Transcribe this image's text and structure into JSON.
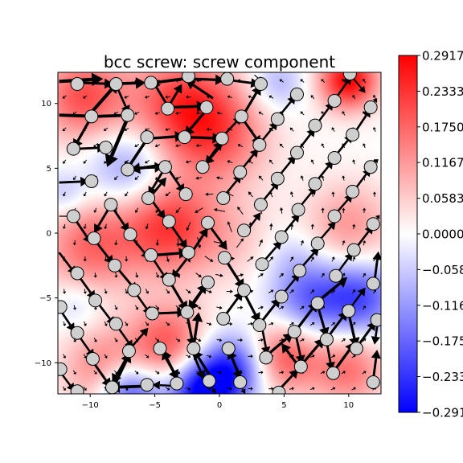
{
  "chart_data": {
    "type": "heatmap",
    "title": "bcc screw: screw component",
    "xlabel": "",
    "ylabel": "",
    "xlim": [
      -12.5,
      12.5
    ],
    "ylim": [
      -12.4,
      12.4
    ],
    "xticks": [
      -10,
      -5,
      0,
      5,
      10
    ],
    "xtick_labels": [
      "−10",
      "−5",
      "0",
      "5",
      "10"
    ],
    "yticks": [
      10,
      5,
      0,
      -5,
      -10
    ],
    "ytick_labels": [
      "10",
      "5",
      "0",
      "−5",
      "−10"
    ],
    "colorbar": {
      "colormap": "bwr",
      "min": -0.2917,
      "max": 0.2917,
      "ticks": [
        0.2917,
        0.2333,
        0.175,
        0.1167,
        0.0583,
        0.0,
        -0.0583,
        -0.1167,
        -0.175,
        -0.2333,
        -0.2917
      ],
      "tick_labels": [
        "0.2917",
        "0.2333",
        "0.1750",
        "0.1167",
        "0.0583",
        "0.0000",
        "−0.0583",
        "−0.1167",
        "−0.1750",
        "−0.2333",
        "−0.2917"
      ]
    },
    "field_blobs": [
      {
        "x": -10.5,
        "y": 10.5,
        "sigma": 2.4,
        "value": 0.2
      },
      {
        "x": -3,
        "y": 10,
        "sigma": 2.8,
        "value": 0.2
      },
      {
        "x": 0,
        "y": 7.5,
        "sigma": 2.8,
        "value": 0.16
      },
      {
        "x": 10,
        "y": 11.8,
        "sigma": 1.6,
        "value": 0.29
      },
      {
        "x": 4.5,
        "y": 11.5,
        "sigma": 1.5,
        "value": -0.09
      },
      {
        "x": -7,
        "y": 5,
        "sigma": 2.2,
        "value": -0.13
      },
      {
        "x": -4,
        "y": 0.5,
        "sigma": 2.6,
        "value": 0.22
      },
      {
        "x": -10,
        "y": -1,
        "sigma": 2.6,
        "value": 0.17
      },
      {
        "x": 1,
        "y": -0.5,
        "sigma": 2.5,
        "value": 0.06
      },
      {
        "x": 10,
        "y": 0.5,
        "sigma": 2.4,
        "value": 0.12
      },
      {
        "x": -12,
        "y": 3,
        "sigma": 1.3,
        "value": -0.08
      },
      {
        "x": -11,
        "y": -5.5,
        "sigma": 1.4,
        "value": -0.06
      },
      {
        "x": -4,
        "y": -8.5,
        "sigma": 2.2,
        "value": 0.19
      },
      {
        "x": -9,
        "y": -10.5,
        "sigma": 2.2,
        "value": 0.15
      },
      {
        "x": 1,
        "y": -10.5,
        "sigma": 1.9,
        "value": -0.24
      },
      {
        "x": -1.5,
        "y": -12.3,
        "sigma": 1.8,
        "value": -0.28
      },
      {
        "x": -7,
        "y": -12.3,
        "sigma": 1.7,
        "value": -0.24
      },
      {
        "x": 5,
        "y": -9.5,
        "sigma": 2.0,
        "value": 0.2
      },
      {
        "x": 7,
        "y": -5,
        "sigma": 2.2,
        "value": -0.18
      },
      {
        "x": 11,
        "y": -5,
        "sigma": 2.0,
        "value": -0.19
      },
      {
        "x": 10,
        "y": -10.5,
        "sigma": 2.0,
        "value": 0.16
      },
      {
        "x": 5.5,
        "y": -1.5,
        "sigma": 1.5,
        "value": -0.04
      }
    ],
    "atoms": [
      {
        "x": -11,
        "y": 11.5
      },
      {
        "x": -8,
        "y": 11.5
      },
      {
        "x": -5.3,
        "y": 11.6
      },
      {
        "x": -2.4,
        "y": 12.1
      },
      {
        "x": 0.6,
        "y": 11.9
      },
      {
        "x": 3.2,
        "y": 11.5
      },
      {
        "x": 6,
        "y": 10.7
      },
      {
        "x": 8.9,
        "y": 10.2
      },
      {
        "x": 10.1,
        "y": 12.3
      },
      {
        "x": -9.9,
        "y": 9
      },
      {
        "x": -7.1,
        "y": 9.1
      },
      {
        "x": -4,
        "y": 9.6
      },
      {
        "x": -1,
        "y": 9.7
      },
      {
        "x": 1.7,
        "y": 9
      },
      {
        "x": 4.5,
        "y": 8.8
      },
      {
        "x": 7.4,
        "y": 8.3
      },
      {
        "x": 11.7,
        "y": 9.7
      },
      {
        "x": -11.3,
        "y": 6.5
      },
      {
        "x": -8.8,
        "y": 6.6
      },
      {
        "x": -5.6,
        "y": 7.4
      },
      {
        "x": -2.7,
        "y": 7.4
      },
      {
        "x": 0.2,
        "y": 7.3
      },
      {
        "x": 3.1,
        "y": 6.8
      },
      {
        "x": 6,
        "y": 6.2
      },
      {
        "x": 8.9,
        "y": 5.8
      },
      {
        "x": 10.3,
        "y": 7.6
      },
      {
        "x": -7.1,
        "y": 4.9
      },
      {
        "x": -4.2,
        "y": 5.1
      },
      {
        "x": -1.3,
        "y": 5.1
      },
      {
        "x": 1.6,
        "y": 4.7
      },
      {
        "x": 4.5,
        "y": 4.2
      },
      {
        "x": 7.4,
        "y": 3.8
      },
      {
        "x": 11.7,
        "y": 5.1
      },
      {
        "x": -9.9,
        "y": 4
      },
      {
        "x": -5.5,
        "y": 2.7
      },
      {
        "x": -2.6,
        "y": 3
      },
      {
        "x": 0.3,
        "y": 2.7
      },
      {
        "x": 3.2,
        "y": 2.2
      },
      {
        "x": 6.1,
        "y": 1.8
      },
      {
        "x": 8.9,
        "y": 1.3
      },
      {
        "x": 10.3,
        "y": 3.2
      },
      {
        "x": -11.3,
        "y": 1.3
      },
      {
        "x": -8.4,
        "y": 2.2
      },
      {
        "x": -3.9,
        "y": 0.9
      },
      {
        "x": -0.9,
        "y": 0.8
      },
      {
        "x": 1.9,
        "y": 0.2
      },
      {
        "x": 4.8,
        "y": -0.3
      },
      {
        "x": 7.6,
        "y": -0.8
      },
      {
        "x": 11.9,
        "y": 0.7
      },
      {
        "x": -9.7,
        "y": -0.4
      },
      {
        "x": -6.9,
        "y": -0.1
      },
      {
        "x": -5.3,
        "y": -1.7
      },
      {
        "x": -2.4,
        "y": -1.5
      },
      {
        "x": 0.4,
        "y": -1.9
      },
      {
        "x": 3.3,
        "y": -2.4
      },
      {
        "x": 6.2,
        "y": -2.9
      },
      {
        "x": 10.4,
        "y": -1.3
      },
      {
        "x": -11,
        "y": -3.1
      },
      {
        "x": -8.1,
        "y": -2.5
      },
      {
        "x": -3.9,
        "y": -3.6
      },
      {
        "x": -0.9,
        "y": -3.8
      },
      {
        "x": 1.9,
        "y": -4.4
      },
      {
        "x": 4.8,
        "y": -4.9
      },
      {
        "x": 9,
        "y": -3.3
      },
      {
        "x": 11.9,
        "y": -3.9
      },
      {
        "x": -12.3,
        "y": -5.7
      },
      {
        "x": -9.6,
        "y": -5.2
      },
      {
        "x": -6.6,
        "y": -4.4
      },
      {
        "x": -5.2,
        "y": -6.2
      },
      {
        "x": -2.5,
        "y": -6.1
      },
      {
        "x": 0.3,
        "y": -6.6
      },
      {
        "x": 3.1,
        "y": -7.1
      },
      {
        "x": 7.6,
        "y": -5.4
      },
      {
        "x": 10,
        "y": -6
      },
      {
        "x": -11,
        "y": -7.7
      },
      {
        "x": -8,
        "y": -7
      },
      {
        "x": -4.6,
        "y": -8.9
      },
      {
        "x": -2,
        "y": -8.9
      },
      {
        "x": 0.7,
        "y": -8.9
      },
      {
        "x": 5.8,
        "y": -7.6
      },
      {
        "x": 8.3,
        "y": -8.2
      },
      {
        "x": 12.2,
        "y": -6.7
      },
      {
        "x": -9.8,
        "y": -9.7
      },
      {
        "x": -7,
        "y": -9.1
      },
      {
        "x": -3.3,
        "y": -11.6
      },
      {
        "x": -0.8,
        "y": -11.4
      },
      {
        "x": 1.6,
        "y": -11.5
      },
      {
        "x": 3.6,
        "y": -9.6
      },
      {
        "x": 6.3,
        "y": -10.3
      },
      {
        "x": 10.6,
        "y": -8.9
      },
      {
        "x": -12.3,
        "y": -10.5
      },
      {
        "x": -11,
        "y": -12.2
      },
      {
        "x": -8.3,
        "y": -11.9
      },
      {
        "x": -5.6,
        "y": -11.7
      },
      {
        "x": 4.6,
        "y": -12.3
      },
      {
        "x": 8.8,
        "y": -10.8
      },
      {
        "x": 11.9,
        "y": -11.5
      }
    ],
    "arrows": [
      {
        "x": -12.4,
        "y": 11.7,
        "dx": 3.4,
        "dy": 0.2
      },
      {
        "x": -10.7,
        "y": 11.6,
        "dx": 2.5,
        "dy": -0.1
      },
      {
        "x": -8.6,
        "y": 11.5,
        "dx": 2.9,
        "dy": 0.1
      },
      {
        "x": -2.8,
        "y": 11.9,
        "dx": -3.0,
        "dy": -0.4
      },
      {
        "x": -2.7,
        "y": 12.1,
        "dx": 0.9,
        "dy": -0.3
      },
      {
        "x": -2.2,
        "y": 11.9,
        "dx": 2.6,
        "dy": -0.1
      },
      {
        "x": 0.8,
        "y": 11.8,
        "dx": 2.3,
        "dy": -0.3
      },
      {
        "x": 2.7,
        "y": 12.2,
        "dx": 0.6,
        "dy": -0.5
      },
      {
        "x": 10.3,
        "y": 12.0,
        "dx": 1.0,
        "dy": -1.2
      },
      {
        "x": -12.4,
        "y": 9.1,
        "dx": 3.1,
        "dy": -0.1
      },
      {
        "x": -9.7,
        "y": 9.0,
        "dx": 3.0,
        "dy": 0.1
      },
      {
        "x": -10.0,
        "y": 9.2,
        "dx": 2.2,
        "dy": 2.5
      },
      {
        "x": -7.9,
        "y": 11.2,
        "dx": 0.9,
        "dy": -2.0
      },
      {
        "x": -3.8,
        "y": 9.7,
        "dx": 2.8,
        "dy": 0.1
      },
      {
        "x": -4.0,
        "y": 9.8,
        "dx": -1.2,
        "dy": 2.0
      },
      {
        "x": -4.1,
        "y": 9.5,
        "dx": 1.2,
        "dy": 2.0
      },
      {
        "x": -0.5,
        "y": 10.4,
        "dx": -2.1,
        "dy": 1.4
      },
      {
        "x": 1.9,
        "y": 9.2,
        "dx": 1.3,
        "dy": 2.2
      },
      {
        "x": 4.6,
        "y": 9.0,
        "dx": 1.3,
        "dy": 1.6
      },
      {
        "x": 7.6,
        "y": 8.5,
        "dx": 1.2,
        "dy": 1.6
      },
      {
        "x": 9.0,
        "y": 10.4,
        "dx": 1.2,
        "dy": 1.7
      },
      {
        "x": -11.1,
        "y": 6.5,
        "dx": 2.3,
        "dy": 0.1
      },
      {
        "x": -10.0,
        "y": 8.8,
        "dx": -1.3,
        "dy": -2.3
      },
      {
        "x": -7.1,
        "y": 8.9,
        "dx": -1.6,
        "dy": -3.8
      },
      {
        "x": -5.4,
        "y": 7.3,
        "dx": 2.7,
        "dy": 0.2
      },
      {
        "x": -5.7,
        "y": 7.1,
        "dx": -1.6,
        "dy": -2.4
      },
      {
        "x": -2.5,
        "y": 7.4,
        "dx": 2.7,
        "dy": -0.1
      },
      {
        "x": -1.0,
        "y": 9.5,
        "dx": -1.7,
        "dy": -2.0
      },
      {
        "x": 0.3,
        "y": 7.5,
        "dx": 1.4,
        "dy": 1.5
      },
      {
        "x": 1.8,
        "y": 8.8,
        "dx": 1.4,
        "dy": -2.0
      },
      {
        "x": 3.2,
        "y": 7.0,
        "dx": 1.3,
        "dy": 1.6
      },
      {
        "x": 6.1,
        "y": 6.4,
        "dx": 1.3,
        "dy": 1.7
      },
      {
        "x": 9.0,
        "y": 6.0,
        "dx": 1.3,
        "dy": 1.6
      },
      {
        "x": 10.5,
        "y": 7.8,
        "dx": 1.2,
        "dy": 1.8
      },
      {
        "x": 11.8,
        "y": 9.9,
        "dx": 0.4,
        "dy": 0.5
      },
      {
        "x": -12.4,
        "y": 3.9,
        "dx": 2.3,
        "dy": 0.1
      },
      {
        "x": -6.9,
        "y": 5.0,
        "dx": 2.6,
        "dy": 0.1
      },
      {
        "x": -4.1,
        "y": 5.3,
        "dx": -2.8,
        "dy": -0.4
      },
      {
        "x": -4.0,
        "y": 5.0,
        "dx": 1.3,
        "dy": -1.9
      },
      {
        "x": -4.3,
        "y": 4.9,
        "dx": -1.2,
        "dy": -2.0
      },
      {
        "x": -1.2,
        "y": 5.2,
        "dx": 1.4,
        "dy": 1.9
      },
      {
        "x": 0.4,
        "y": 7.1,
        "dx": -1.5,
        "dy": -1.8
      },
      {
        "x": 1.7,
        "y": 4.9,
        "dx": 1.3,
        "dy": 1.6
      },
      {
        "x": 4.6,
        "y": 4.4,
        "dx": 1.3,
        "dy": 1.6
      },
      {
        "x": 7.5,
        "y": 4.0,
        "dx": 1.3,
        "dy": 1.6
      },
      {
        "x": 11.8,
        "y": 5.3,
        "dx": 0.5,
        "dy": 0.4
      },
      {
        "x": -12.4,
        "y": 1.3,
        "dx": 1.0,
        "dy": 0.0
      },
      {
        "x": -8.3,
        "y": 2.0,
        "dx": 1.3,
        "dy": -1.9
      },
      {
        "x": -8.5,
        "y": 2.0,
        "dx": -1.2,
        "dy": -2.0
      },
      {
        "x": -5.5,
        "y": 2.9,
        "dx": 1.3,
        "dy": -1.8
      },
      {
        "x": -5.6,
        "y": 2.5,
        "dx": 1.5,
        "dy": 1.8
      },
      {
        "x": 0.4,
        "y": 2.9,
        "dx": 1.3,
        "dy": 1.6
      },
      {
        "x": 3.3,
        "y": 2.4,
        "dx": 1.3,
        "dy": 1.6
      },
      {
        "x": 6.2,
        "y": 2.0,
        "dx": 1.3,
        "dy": 1.6
      },
      {
        "x": 9.0,
        "y": 1.5,
        "dx": 1.3,
        "dy": 1.5
      },
      {
        "x": 10.5,
        "y": 3.4,
        "dx": 1.2,
        "dy": 1.6
      },
      {
        "x": -11.2,
        "y": 1.1,
        "dx": 1.3,
        "dy": -1.9
      },
      {
        "x": -9.6,
        "y": -0.6,
        "dx": 1.4,
        "dy": -1.8
      },
      {
        "x": -6.8,
        "y": -0.3,
        "dx": 1.4,
        "dy": -1.7
      },
      {
        "x": -5.1,
        "y": -1.7,
        "dx": 2.7,
        "dy": 0.2
      },
      {
        "x": -3.8,
        "y": 0.7,
        "dx": 1.3,
        "dy": -1.9
      },
      {
        "x": -2.2,
        "y": -1.6,
        "dx": 1.3,
        "dy": 2.0
      },
      {
        "x": -0.8,
        "y": 0.6,
        "dx": 1.4,
        "dy": -1.9
      },
      {
        "x": 2.0,
        "y": 0.0,
        "dx": 1.2,
        "dy": 1.6
      },
      {
        "x": 4.9,
        "y": -0.1,
        "dx": 1.3,
        "dy": 1.6
      },
      {
        "x": 7.7,
        "y": -0.6,
        "dx": 1.3,
        "dy": 1.5
      },
      {
        "x": 10.6,
        "y": -1.1,
        "dx": 1.3,
        "dy": 1.7
      },
      {
        "x": 12.0,
        "y": 0.9,
        "dx": 0.4,
        "dy": 0.5
      },
      {
        "x": -12.4,
        "y": -1.5,
        "dx": 1.3,
        "dy": -1.7
      },
      {
        "x": -10.9,
        "y": -3.3,
        "dx": 1.3,
        "dy": -1.8
      },
      {
        "x": -7.9,
        "y": -2.7,
        "dx": 1.5,
        "dy": -1.8
      },
      {
        "x": -5.2,
        "y": -1.9,
        "dx": 1.2,
        "dy": -1.8
      },
      {
        "x": -2.3,
        "y": -1.7,
        "dx": -1.4,
        "dy": -1.8
      },
      {
        "x": -0.8,
        "y": -3.6,
        "dx": -1.6,
        "dy": -2.4
      },
      {
        "x": 0.5,
        "y": -2.1,
        "dx": 1.4,
        "dy": -2.2
      },
      {
        "x": 3.4,
        "y": -2.2,
        "dx": 1.4,
        "dy": 1.6
      },
      {
        "x": 6.3,
        "y": -2.7,
        "dx": 1.4,
        "dy": 1.6
      },
      {
        "x": 9.1,
        "y": -3.1,
        "dx": 1.2,
        "dy": 1.6
      },
      {
        "x": 12.0,
        "y": -3.7,
        "dx": 0.3,
        "dy": 2.3
      },
      {
        "x": -12.4,
        "y": -5.8,
        "dx": 1.2,
        "dy": -1.8
      },
      {
        "x": -9.4,
        "y": -5.4,
        "dx": 1.3,
        "dy": -1.7
      },
      {
        "x": -6.5,
        "y": -4.6,
        "dx": 1.2,
        "dy": -1.7
      },
      {
        "x": -5.0,
        "y": -6.2,
        "dx": 2.4,
        "dy": 0.1
      },
      {
        "x": -3.8,
        "y": -3.8,
        "dx": 1.3,
        "dy": -2.2
      },
      {
        "x": -2.5,
        "y": -6.3,
        "dx": 0.5,
        "dy": -2.5
      },
      {
        "x": -2.5,
        "y": -6.0,
        "dx": 1.5,
        "dy": 2.1
      },
      {
        "x": 0.4,
        "y": -6.4,
        "dx": 1.4,
        "dy": 1.9
      },
      {
        "x": 1.9,
        "y": -4.6,
        "dx": 1.2,
        "dy": -2.3
      },
      {
        "x": 3.2,
        "y": -6.9,
        "dx": 1.5,
        "dy": 1.9
      },
      {
        "x": 4.9,
        "y": -4.7,
        "dx": 1.3,
        "dy": 1.6
      },
      {
        "x": 7.7,
        "y": -5.2,
        "dx": 2.2,
        "dy": 1.8
      },
      {
        "x": 10.1,
        "y": -5.8,
        "dx": 1.2,
        "dy": 1.6
      },
      {
        "x": 12.3,
        "y": -6.5,
        "dx": -0.3,
        "dy": -2.1
      },
      {
        "x": -10.9,
        "y": -7.9,
        "dx": 1.2,
        "dy": -1.7
      },
      {
        "x": -7.9,
        "y": -7.2,
        "dx": 1.2,
        "dy": -1.7
      },
      {
        "x": -7.0,
        "y": -9.3,
        "dx": -1.3,
        "dy": -2.3
      },
      {
        "x": -6.9,
        "y": -8.9,
        "dx": 1.4,
        "dy": 1.6
      },
      {
        "x": -4.5,
        "y": -9.0,
        "dx": 1.3,
        "dy": -2.3
      },
      {
        "x": -2.1,
        "y": -9.1,
        "dx": 0.9,
        "dy": -2.2
      },
      {
        "x": -2.0,
        "y": -8.7,
        "dx": 0.4,
        "dy": 2.6
      },
      {
        "x": 0.8,
        "y": -9.1,
        "dx": 0.8,
        "dy": -2.2
      },
      {
        "x": 3.3,
        "y": -7.3,
        "dx": 0.4,
        "dy": -2.1
      },
      {
        "x": 3.7,
        "y": -9.4,
        "dx": 2.0,
        "dy": 1.7
      },
      {
        "x": 5.9,
        "y": -7.8,
        "dx": 0.5,
        "dy": -2.3
      },
      {
        "x": 6.0,
        "y": -7.4,
        "dx": 1.6,
        "dy": 2.1
      },
      {
        "x": 8.4,
        "y": -8.0,
        "dx": 1.5,
        "dy": 2.0
      },
      {
        "x": 7.6,
        "y": -5.6,
        "dx": 0.7,
        "dy": -2.4
      },
      {
        "x": 10.7,
        "y": -8.7,
        "dx": 1.4,
        "dy": 1.9
      },
      {
        "x": 10.0,
        "y": -6.2,
        "dx": 0.6,
        "dy": -2.6
      },
      {
        "x": -12.4,
        "y": -10.6,
        "dx": 1.2,
        "dy": -1.6
      },
      {
        "x": -9.8,
        "y": -9.9,
        "dx": 1.4,
        "dy": -2.0
      },
      {
        "x": -8.1,
        "y": -11.7,
        "dx": 1.2,
        "dy": 2.5
      },
      {
        "x": -5.5,
        "y": -11.8,
        "dx": -3.0,
        "dy": -0.1
      },
      {
        "x": -3.2,
        "y": -11.8,
        "dx": -2.0,
        "dy": 0.1
      },
      {
        "x": -3.2,
        "y": -11.4,
        "dx": -1.2,
        "dy": 2.4
      },
      {
        "x": -0.7,
        "y": -11.6,
        "dx": 0.4,
        "dy": -0.8
      },
      {
        "x": -0.6,
        "y": -11.2,
        "dx": -1.4,
        "dy": 2.2
      },
      {
        "x": 1.7,
        "y": -11.3,
        "dx": -1.0,
        "dy": 2.3
      },
      {
        "x": 1.6,
        "y": -11.7,
        "dx": 0.4,
        "dy": -0.7
      },
      {
        "x": 4.5,
        "y": -12.2,
        "dx": 1.6,
        "dy": 1.7
      },
      {
        "x": 6.4,
        "y": -10.1,
        "dx": 1.7,
        "dy": 2.0
      },
      {
        "x": 8.9,
        "y": -10.6,
        "dx": 1.6,
        "dy": 2.2
      },
      {
        "x": 11.9,
        "y": -11.3,
        "dx": 0.3,
        "dy": 2.3
      },
      {
        "x": 6.3,
        "y": -10.5,
        "dx": -1.5,
        "dy": 2.0
      },
      {
        "x": 8.3,
        "y": -8.4,
        "dx": 0.4,
        "dy": -2.2
      }
    ]
  }
}
